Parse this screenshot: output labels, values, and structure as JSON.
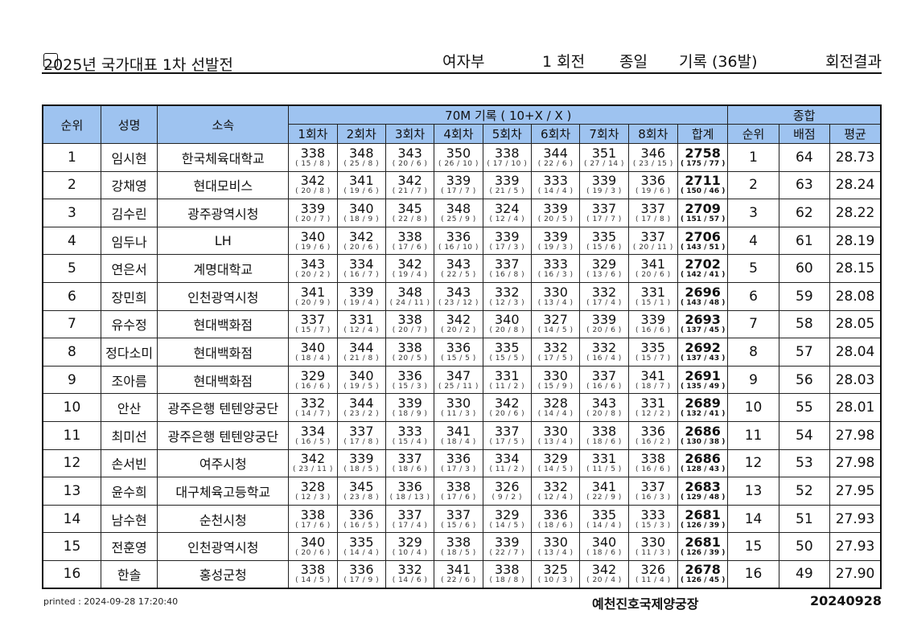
{
  "header": {
    "title": "2025년 국가대표 1차 선발전",
    "division": "여자부",
    "round": "1  회전",
    "event": "종일",
    "record": "기록 (36발)",
    "result": "회전결과"
  },
  "table": {
    "headers": {
      "rank": "순위",
      "name": "성명",
      "team": "소속",
      "group": "70M 기록 ( 10+X / X )",
      "summary": "종합",
      "rounds": [
        "1회차",
        "2회차",
        "3회차",
        "4회차",
        "5회차",
        "6회차",
        "7회차",
        "8회차"
      ],
      "total": "합계",
      "sum_rank": "순위",
      "points": "배점",
      "avg": "평균"
    },
    "rows": [
      {
        "rank": "1",
        "name": "임시현",
        "team": "한국체육대학교",
        "scores": [
          "338",
          "348",
          "343",
          "350",
          "338",
          "344",
          "351",
          "346"
        ],
        "details": [
          "( 15 / 8 )",
          "( 25 / 8 )",
          "( 20 / 6 )",
          "( 26 / 10 )",
          "( 17 / 10 )",
          "( 22 / 6 )",
          "( 27 / 14 )",
          "( 23 / 15 )"
        ],
        "total": "2758",
        "total_detail": "( 175 / 77 )",
        "sum_rank": "1",
        "points": "64",
        "avg": "28.73"
      },
      {
        "rank": "2",
        "name": "강채영",
        "team": "현대모비스",
        "scores": [
          "342",
          "341",
          "342",
          "339",
          "339",
          "333",
          "339",
          "336"
        ],
        "details": [
          "( 20 / 8 )",
          "( 19 / 6 )",
          "( 21 / 7 )",
          "( 17 / 7 )",
          "( 21 / 5 )",
          "( 14 / 4 )",
          "( 19 / 3 )",
          "( 19 / 6 )"
        ],
        "total": "2711",
        "total_detail": "( 150 / 46 )",
        "sum_rank": "2",
        "points": "63",
        "avg": "28.24"
      },
      {
        "rank": "3",
        "name": "김수린",
        "team": "광주광역시청",
        "scores": [
          "339",
          "340",
          "345",
          "348",
          "324",
          "339",
          "337",
          "337"
        ],
        "details": [
          "( 20 / 7 )",
          "( 18 / 9 )",
          "( 22 / 8 )",
          "( 25 / 9 )",
          "( 12 / 4 )",
          "( 20 / 5 )",
          "( 17 / 7 )",
          "( 17 / 8 )"
        ],
        "total": "2709",
        "total_detail": "( 151 / 57 )",
        "sum_rank": "3",
        "points": "62",
        "avg": "28.22"
      },
      {
        "rank": "4",
        "name": "임두나",
        "team": "LH",
        "scores": [
          "340",
          "342",
          "338",
          "336",
          "339",
          "339",
          "335",
          "337"
        ],
        "details": [
          "( 19 / 6 )",
          "( 20 / 6 )",
          "( 17 / 6 )",
          "( 16 / 10 )",
          "( 17 / 3 )",
          "( 19 / 3 )",
          "( 15 / 6 )",
          "( 20 / 11 )"
        ],
        "total": "2706",
        "total_detail": "( 143 / 51 )",
        "sum_rank": "4",
        "points": "61",
        "avg": "28.19"
      },
      {
        "rank": "5",
        "name": "연은서",
        "team": "계명대학교",
        "scores": [
          "343",
          "334",
          "342",
          "343",
          "337",
          "333",
          "329",
          "341"
        ],
        "details": [
          "( 20 / 2 )",
          "( 16 / 7 )",
          "( 19 / 4 )",
          "( 22 / 5 )",
          "( 16 / 8 )",
          "( 16 / 3 )",
          "( 13 / 6 )",
          "( 20 / 6 )"
        ],
        "total": "2702",
        "total_detail": "( 142 / 41 )",
        "sum_rank": "5",
        "points": "60",
        "avg": "28.15"
      },
      {
        "rank": "6",
        "name": "장민희",
        "team": "인천광역시청",
        "scores": [
          "341",
          "339",
          "348",
          "343",
          "332",
          "330",
          "332",
          "331"
        ],
        "details": [
          "( 20 / 9 )",
          "( 19 / 4 )",
          "( 24 / 11 )",
          "( 23 / 12 )",
          "( 12 / 3 )",
          "( 13 / 4 )",
          "( 17 / 4 )",
          "( 15 / 1 )"
        ],
        "total": "2696",
        "total_detail": "( 143 / 48 )",
        "sum_rank": "6",
        "points": "59",
        "avg": "28.08"
      },
      {
        "rank": "7",
        "name": "유수정",
        "team": "현대백화점",
        "scores": [
          "337",
          "331",
          "338",
          "342",
          "340",
          "327",
          "339",
          "339"
        ],
        "details": [
          "( 15 / 7 )",
          "( 12 / 4 )",
          "( 20 / 7 )",
          "( 20 / 2 )",
          "( 20 / 8 )",
          "( 14 / 5 )",
          "( 20 / 6 )",
          "( 16 / 6 )"
        ],
        "total": "2693",
        "total_detail": "( 137 / 45 )",
        "sum_rank": "7",
        "points": "58",
        "avg": "28.05"
      },
      {
        "rank": "8",
        "name": "정다소미",
        "team": "현대백화점",
        "scores": [
          "340",
          "344",
          "338",
          "336",
          "335",
          "332",
          "332",
          "335"
        ],
        "details": [
          "( 18 / 4 )",
          "( 21 / 8 )",
          "( 20 / 5 )",
          "( 15 / 5 )",
          "( 15 / 5 )",
          "( 17 / 5 )",
          "( 16 / 4 )",
          "( 15 / 7 )"
        ],
        "total": "2692",
        "total_detail": "( 137 / 43 )",
        "sum_rank": "8",
        "points": "57",
        "avg": "28.04"
      },
      {
        "rank": "9",
        "name": "조아름",
        "team": "현대백화점",
        "scores": [
          "329",
          "340",
          "336",
          "347",
          "331",
          "330",
          "337",
          "341"
        ],
        "details": [
          "( 16 / 6 )",
          "( 19 / 5 )",
          "( 15 / 3 )",
          "( 25 / 11 )",
          "( 11 / 2 )",
          "( 15 / 9 )",
          "( 16 / 6 )",
          "( 18 / 7 )"
        ],
        "total": "2691",
        "total_detail": "( 135 / 49 )",
        "sum_rank": "9",
        "points": "56",
        "avg": "28.03"
      },
      {
        "rank": "10",
        "name": "안산",
        "team": "광주은행 텐텐양궁단",
        "scores": [
          "332",
          "344",
          "339",
          "330",
          "342",
          "328",
          "343",
          "331"
        ],
        "details": [
          "( 14 / 7 )",
          "( 23 / 2 )",
          "( 18 / 9 )",
          "( 11 / 3 )",
          "( 20 / 6 )",
          "( 14 / 4 )",
          "( 20 / 8 )",
          "( 12 / 2 )"
        ],
        "total": "2689",
        "total_detail": "( 132 / 41 )",
        "sum_rank": "10",
        "points": "55",
        "avg": "28.01"
      },
      {
        "rank": "11",
        "name": "최미선",
        "team": "광주은행 텐텐양궁단",
        "scores": [
          "334",
          "337",
          "333",
          "341",
          "337",
          "330",
          "338",
          "336"
        ],
        "details": [
          "( 16 / 5 )",
          "( 17 / 8 )",
          "( 15 / 4 )",
          "( 18 / 4 )",
          "( 17 / 5 )",
          "( 13 / 4 )",
          "( 18 / 6 )",
          "( 16 / 2 )"
        ],
        "total": "2686",
        "total_detail": "( 130 / 38 )",
        "sum_rank": "11",
        "points": "54",
        "avg": "27.98"
      },
      {
        "rank": "12",
        "name": "손서빈",
        "team": "여주시청",
        "scores": [
          "342",
          "339",
          "337",
          "336",
          "334",
          "329",
          "331",
          "338"
        ],
        "details": [
          "( 23 / 11 )",
          "( 18 / 5 )",
          "( 18 / 6 )",
          "( 17 / 3 )",
          "( 11 / 2 )",
          "( 14 / 5 )",
          "( 11 / 5 )",
          "( 16 / 6 )"
        ],
        "total": "2686",
        "total_detail": "( 128 / 43 )",
        "sum_rank": "12",
        "points": "53",
        "avg": "27.98"
      },
      {
        "rank": "13",
        "name": "윤수희",
        "team": "대구체육고등학교",
        "scores": [
          "328",
          "345",
          "336",
          "338",
          "326",
          "332",
          "341",
          "337"
        ],
        "details": [
          "( 12 / 3 )",
          "( 23 / 8 )",
          "( 18 / 13 )",
          "( 17 / 6 )",
          "( 9 / 2 )",
          "( 12 / 4 )",
          "( 22 / 9 )",
          "( 16 / 3 )"
        ],
        "total": "2683",
        "total_detail": "( 129 / 48 )",
        "sum_rank": "13",
        "points": "52",
        "avg": "27.95"
      },
      {
        "rank": "14",
        "name": "남수현",
        "team": "순천시청",
        "scores": [
          "338",
          "336",
          "337",
          "337",
          "329",
          "336",
          "335",
          "333"
        ],
        "details": [
          "( 17 / 6 )",
          "( 16 / 5 )",
          "( 17 / 4 )",
          "( 15 / 6 )",
          "( 14 / 5 )",
          "( 18 / 6 )",
          "( 14 / 4 )",
          "( 15 / 3 )"
        ],
        "total": "2681",
        "total_detail": "( 126 / 39 )",
        "sum_rank": "14",
        "points": "51",
        "avg": "27.93"
      },
      {
        "rank": "15",
        "name": "전훈영",
        "team": "인천광역시청",
        "scores": [
          "340",
          "335",
          "329",
          "338",
          "339",
          "330",
          "340",
          "330"
        ],
        "details": [
          "( 20 / 6 )",
          "( 14 / 4 )",
          "( 10 / 4 )",
          "( 18 / 5 )",
          "( 22 / 7 )",
          "( 13 / 4 )",
          "( 18 / 6 )",
          "( 11 / 3 )"
        ],
        "total": "2681",
        "total_detail": "( 126 / 39 )",
        "sum_rank": "15",
        "points": "50",
        "avg": "27.93"
      },
      {
        "rank": "16",
        "name": "한솔",
        "team": "홍성군청",
        "scores": [
          "338",
          "336",
          "332",
          "341",
          "338",
          "325",
          "342",
          "326"
        ],
        "details": [
          "( 14 / 5 )",
          "( 17 / 9 )",
          "( 14 / 6 )",
          "( 22 / 6 )",
          "( 18 / 8 )",
          "( 10 / 3 )",
          "( 20 / 4 )",
          "( 11 / 4 )"
        ],
        "total": "2678",
        "total_detail": "( 126 / 45 )",
        "sum_rank": "16",
        "points": "49",
        "avg": "27.90"
      }
    ]
  },
  "footer": {
    "printed": "printed : 2024-09-28 17:20:40",
    "venue": "예천진호국제양궁장",
    "date": "20240928"
  },
  "colors": {
    "header_bg": "#9ec3f0"
  }
}
